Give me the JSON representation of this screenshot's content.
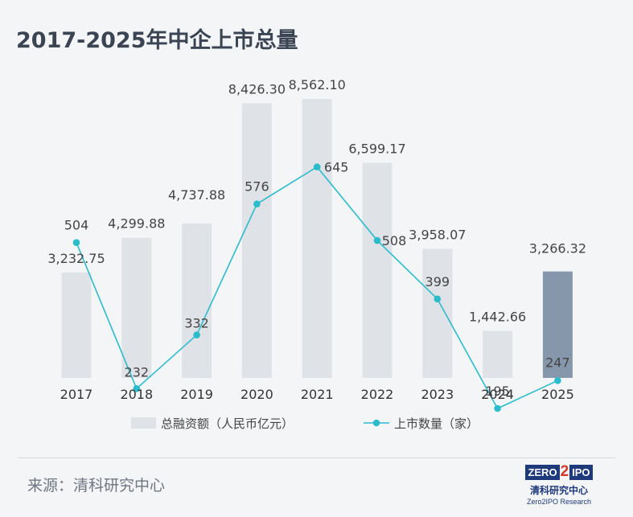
{
  "title": "2017-2025年中企上市总量",
  "source": "来源：清科研究中心",
  "logo": {
    "zero": "ZERO",
    "two": "2",
    "ipo": "IPO",
    "cn": "清科研究中心",
    "en": "Zero2IPO Research"
  },
  "colors": {
    "bar": "#dfe2e6",
    "bar_highlight": "#8797ab",
    "line": "#2bbccc",
    "title": "#3b4452",
    "label": "#444444"
  },
  "chart_data": {
    "type": "bar",
    "categories": [
      "2017",
      "2018",
      "2019",
      "2020",
      "2021",
      "2022",
      "2023",
      "2024",
      "2025"
    ],
    "series": [
      {
        "name": "总融资额（人民币亿元）",
        "type": "bar",
        "values": [
          3232.75,
          4299.88,
          4737.88,
          8426.3,
          8562.1,
          6599.17,
          3958.07,
          1442.66,
          3266.32
        ],
        "labels": [
          "3,232.75",
          "4,299.88",
          "4,737.88",
          "8,426.30",
          "8,562.10",
          "6,599.17",
          "3,958.07",
          "1,442.66",
          "3,266.32"
        ]
      },
      {
        "name": "上市数量（家）",
        "type": "line",
        "values": [
          504,
          232,
          332,
          576,
          645,
          508,
          399,
          195,
          247
        ],
        "labels": [
          "504",
          "232",
          "332",
          "576",
          "645",
          "508",
          "399",
          "195",
          "247"
        ]
      }
    ],
    "highlight_category": "2025",
    "legend": [
      "总融资额（人民币亿元）",
      "上市数量（家）"
    ],
    "legend_position": "bottom"
  }
}
